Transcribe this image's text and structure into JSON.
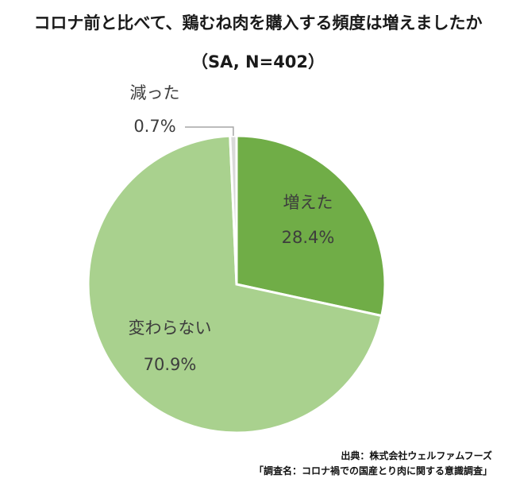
{
  "title": "コロナ前と比べて、鶏むね肉を購入する頻度は増えましたか",
  "subtitle": "（SA, N=402）",
  "chart_data": {
    "type": "pie",
    "title": "コロナ前と比べて、鶏むね肉を購入する頻度は増えましたか",
    "subtitle": "（SA, N=402）",
    "slices": [
      {
        "label": "増えた",
        "value": 28.4,
        "display": "28.4%",
        "color": "#70ad47"
      },
      {
        "label": "変わらない",
        "value": 70.9,
        "display": "70.9%",
        "color": "#a9d18e"
      },
      {
        "label": "減った",
        "value": 0.7,
        "display": "0.7%",
        "color": "#d9d9d9"
      }
    ]
  },
  "source": {
    "line1": "出典：株式会社ウェルファムフーズ",
    "line2": "「調査名：コロナ禍での国産とり肉に関する意識調査」"
  }
}
